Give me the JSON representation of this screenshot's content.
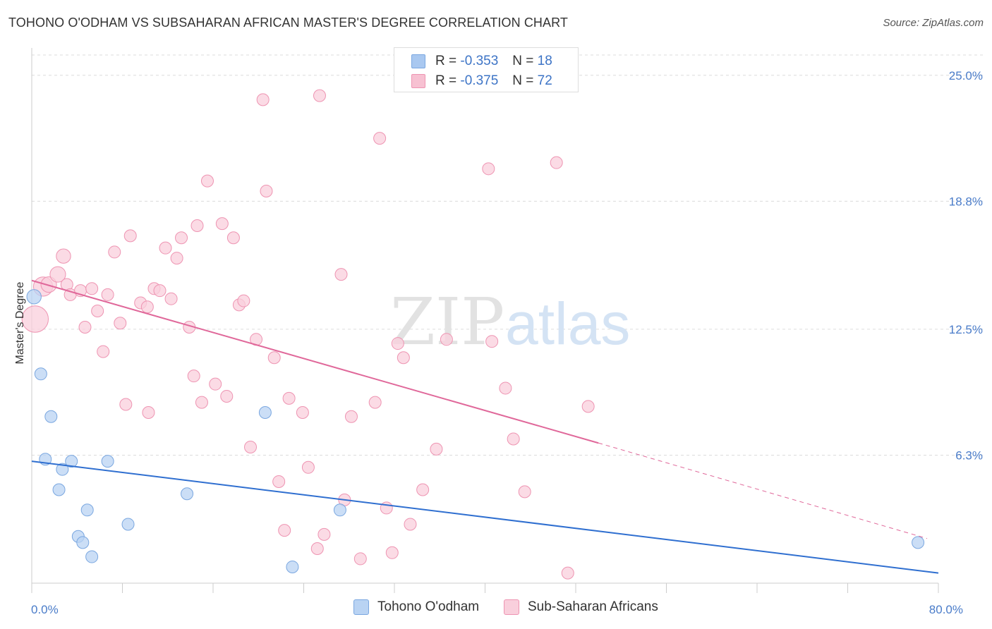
{
  "title": "TOHONO O'ODHAM VS SUBSAHARAN AFRICAN MASTER'S DEGREE CORRELATION CHART",
  "source": "Source: ZipAtlas.com",
  "watermark": {
    "zip": "ZIP",
    "atlas": "atlas"
  },
  "legend": {
    "rows": [
      {
        "r_label": "R = ",
        "r_value": "-0.353",
        "n_label": "N = ",
        "n_value": "18",
        "color": "#a9c8f0",
        "border": "#7aa7e0"
      },
      {
        "r_label": "R = ",
        "r_value": "-0.375",
        "n_label": "N = ",
        "n_value": "72",
        "color": "#f7c1d2",
        "border": "#ee94b2"
      }
    ]
  },
  "bottom_legend": [
    {
      "label": "Tohono O'odham",
      "color": "#b9d3f3",
      "border": "#7aa7e0"
    },
    {
      "label": "Sub-Saharan Africans",
      "color": "#f9cfdc",
      "border": "#ee94b2"
    }
  ],
  "chart_data": {
    "type": "scatter",
    "title": "TOHONO O'ODHAM VS SUBSAHARAN AFRICAN MASTER'S DEGREE CORRELATION CHART",
    "xlabel": "",
    "ylabel": "Master's Degree",
    "xlim": [
      0,
      80
    ],
    "ylim": [
      0,
      26
    ],
    "x_tick_labels": [
      {
        "value": 0,
        "label": "0.0%"
      },
      {
        "value": 80,
        "label": "80.0%"
      }
    ],
    "y_ticks": [
      {
        "value": 6.3,
        "label": "6.3%"
      },
      {
        "value": 12.5,
        "label": "12.5%"
      },
      {
        "value": 18.8,
        "label": "18.8%"
      },
      {
        "value": 25.0,
        "label": "25.0%"
      }
    ],
    "x_minor_ticks": [
      8,
      16,
      24,
      32,
      40,
      48,
      56,
      64,
      72
    ],
    "series": [
      {
        "name": "Tohono O'odham",
        "color": "#7aa7e0",
        "fill": "#b9d3f3",
        "trend_color": "#2f6fd0",
        "trend": {
          "x0": 0,
          "y0": 6.0,
          "x1": 80,
          "y1": 0.5
        },
        "points": [
          {
            "x": 0.2,
            "y": 14.1,
            "s": 1.2
          },
          {
            "x": 0.8,
            "y": 10.3,
            "s": 1
          },
          {
            "x": 1.2,
            "y": 6.1,
            "s": 1
          },
          {
            "x": 1.7,
            "y": 8.2,
            "s": 1
          },
          {
            "x": 2.4,
            "y": 4.6,
            "s": 1
          },
          {
            "x": 2.7,
            "y": 5.6,
            "s": 1
          },
          {
            "x": 3.5,
            "y": 6.0,
            "s": 1
          },
          {
            "x": 4.1,
            "y": 2.3,
            "s": 1
          },
          {
            "x": 4.5,
            "y": 2.0,
            "s": 1
          },
          {
            "x": 5.3,
            "y": 1.3,
            "s": 1
          },
          {
            "x": 4.9,
            "y": 3.6,
            "s": 1
          },
          {
            "x": 6.7,
            "y": 6.0,
            "s": 1
          },
          {
            "x": 8.5,
            "y": 2.9,
            "s": 1
          },
          {
            "x": 13.7,
            "y": 4.4,
            "s": 1
          },
          {
            "x": 20.6,
            "y": 8.4,
            "s": 1
          },
          {
            "x": 23.0,
            "y": 0.8,
            "s": 1
          },
          {
            "x": 27.2,
            "y": 3.6,
            "s": 1
          },
          {
            "x": 78.2,
            "y": 2.0,
            "s": 1
          }
        ]
      },
      {
        "name": "Sub-Saharan Africans",
        "color": "#ee94b2",
        "fill": "#f9cfdc",
        "trend_color": "#e0689a",
        "trend": {
          "x0": 0,
          "y0": 14.9,
          "x1": 50,
          "y1": 6.9
        },
        "trend_dashed": {
          "x0": 50,
          "y0": 6.9,
          "x1": 79,
          "y1": 2.2
        },
        "points": [
          {
            "x": 0.3,
            "y": 13.0,
            "s": 2.2
          },
          {
            "x": 1.0,
            "y": 14.6,
            "s": 1.6
          },
          {
            "x": 1.5,
            "y": 14.7,
            "s": 1.3
          },
          {
            "x": 2.3,
            "y": 15.2,
            "s": 1.3
          },
          {
            "x": 2.8,
            "y": 16.1,
            "s": 1.2
          },
          {
            "x": 3.1,
            "y": 14.7,
            "s": 1
          },
          {
            "x": 3.4,
            "y": 14.2,
            "s": 1
          },
          {
            "x": 4.3,
            "y": 14.4,
            "s": 1
          },
          {
            "x": 4.7,
            "y": 12.6,
            "s": 1
          },
          {
            "x": 5.3,
            "y": 14.5,
            "s": 1
          },
          {
            "x": 5.8,
            "y": 13.4,
            "s": 1
          },
          {
            "x": 6.3,
            "y": 11.4,
            "s": 1
          },
          {
            "x": 6.7,
            "y": 14.2,
            "s": 1
          },
          {
            "x": 7.3,
            "y": 16.3,
            "s": 1
          },
          {
            "x": 7.8,
            "y": 12.8,
            "s": 1
          },
          {
            "x": 8.3,
            "y": 8.8,
            "s": 1
          },
          {
            "x": 8.7,
            "y": 17.1,
            "s": 1
          },
          {
            "x": 9.6,
            "y": 13.8,
            "s": 1
          },
          {
            "x": 10.2,
            "y": 13.6,
            "s": 1
          },
          {
            "x": 10.3,
            "y": 8.4,
            "s": 1
          },
          {
            "x": 10.8,
            "y": 14.5,
            "s": 1
          },
          {
            "x": 11.3,
            "y": 14.4,
            "s": 1
          },
          {
            "x": 11.8,
            "y": 16.5,
            "s": 1
          },
          {
            "x": 12.3,
            "y": 14.0,
            "s": 1
          },
          {
            "x": 12.8,
            "y": 16.0,
            "s": 1
          },
          {
            "x": 13.2,
            "y": 17.0,
            "s": 1
          },
          {
            "x": 13.9,
            "y": 12.6,
            "s": 1
          },
          {
            "x": 14.3,
            "y": 10.2,
            "s": 1
          },
          {
            "x": 14.6,
            "y": 17.6,
            "s": 1
          },
          {
            "x": 15.0,
            "y": 8.9,
            "s": 1
          },
          {
            "x": 15.5,
            "y": 19.8,
            "s": 1
          },
          {
            "x": 16.2,
            "y": 9.8,
            "s": 1
          },
          {
            "x": 16.8,
            "y": 17.7,
            "s": 1
          },
          {
            "x": 17.2,
            "y": 9.2,
            "s": 1
          },
          {
            "x": 17.8,
            "y": 17.0,
            "s": 1
          },
          {
            "x": 18.3,
            "y": 13.7,
            "s": 1
          },
          {
            "x": 18.7,
            "y": 13.9,
            "s": 1
          },
          {
            "x": 19.3,
            "y": 6.7,
            "s": 1
          },
          {
            "x": 19.8,
            "y": 12.0,
            "s": 1
          },
          {
            "x": 20.4,
            "y": 23.8,
            "s": 1
          },
          {
            "x": 20.7,
            "y": 19.3,
            "s": 1
          },
          {
            "x": 21.4,
            "y": 11.1,
            "s": 1
          },
          {
            "x": 21.8,
            "y": 5.0,
            "s": 1
          },
          {
            "x": 22.3,
            "y": 2.6,
            "s": 1
          },
          {
            "x": 22.7,
            "y": 9.1,
            "s": 1
          },
          {
            "x": 23.9,
            "y": 8.4,
            "s": 1
          },
          {
            "x": 24.4,
            "y": 5.7,
            "s": 1
          },
          {
            "x": 25.2,
            "y": 1.7,
            "s": 1
          },
          {
            "x": 25.8,
            "y": 2.4,
            "s": 1
          },
          {
            "x": 25.4,
            "y": 24.0,
            "s": 1
          },
          {
            "x": 27.3,
            "y": 15.2,
            "s": 1
          },
          {
            "x": 27.6,
            "y": 4.1,
            "s": 1
          },
          {
            "x": 28.2,
            "y": 8.2,
            "s": 1
          },
          {
            "x": 29.0,
            "y": 1.2,
            "s": 1
          },
          {
            "x": 30.3,
            "y": 8.9,
            "s": 1
          },
          {
            "x": 30.7,
            "y": 21.9,
            "s": 1
          },
          {
            "x": 31.3,
            "y": 3.7,
            "s": 1
          },
          {
            "x": 31.8,
            "y": 1.5,
            "s": 1
          },
          {
            "x": 32.3,
            "y": 11.8,
            "s": 1
          },
          {
            "x": 32.8,
            "y": 11.1,
            "s": 1
          },
          {
            "x": 33.4,
            "y": 2.9,
            "s": 1
          },
          {
            "x": 34.5,
            "y": 4.6,
            "s": 1
          },
          {
            "x": 35.7,
            "y": 6.6,
            "s": 1
          },
          {
            "x": 36.6,
            "y": 12.0,
            "s": 1
          },
          {
            "x": 40.6,
            "y": 11.9,
            "s": 1
          },
          {
            "x": 40.3,
            "y": 20.4,
            "s": 1
          },
          {
            "x": 41.8,
            "y": 9.6,
            "s": 1
          },
          {
            "x": 42.5,
            "y": 7.1,
            "s": 1
          },
          {
            "x": 43.5,
            "y": 4.5,
            "s": 1
          },
          {
            "x": 46.3,
            "y": 20.7,
            "s": 1
          },
          {
            "x": 47.3,
            "y": 0.5,
            "s": 1
          },
          {
            "x": 49.1,
            "y": 8.7,
            "s": 1
          }
        ]
      }
    ]
  }
}
